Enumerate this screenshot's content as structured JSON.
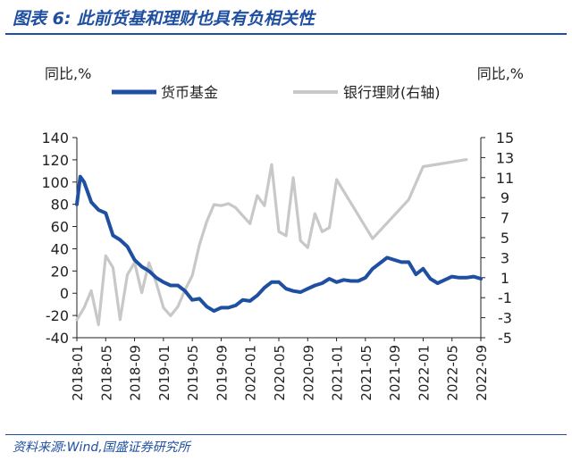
{
  "figure_title": "图表 6:  此前货基和理财也具有负相关性",
  "source": "资料来源:Wind,国盛证券研究所",
  "chart_data": {
    "type": "line",
    "y_unit_left": "同比,%",
    "y_unit_right": "同比,%",
    "ylim_left": [
      -40,
      140
    ],
    "ylim_right": [
      -5,
      15
    ],
    "yticks_left": [
      "140",
      "120",
      "100",
      "80",
      "60",
      "40",
      "20",
      "0",
      "-20",
      "-40"
    ],
    "yticks_right": [
      "15",
      "13",
      "11",
      "9",
      "7",
      "5",
      "3",
      "1",
      "-1",
      "-3",
      "-5"
    ],
    "xlim": [
      "2018-01",
      "2022-09"
    ],
    "x_tick_labels": [
      "2018-01",
      "2018-05",
      "2018-09",
      "2019-01",
      "2019-05",
      "2019-09",
      "2020-01",
      "2020-05",
      "2020-09",
      "2021-01",
      "2021-05",
      "2021-09",
      "2022-01",
      "2022-05",
      "2022-09"
    ],
    "legend_position": "top",
    "grid": false,
    "series": [
      {
        "name": "货币基金",
        "axis": "left",
        "color": "#1f4fa0",
        "points": [
          [
            "2018-01",
            80
          ],
          [
            "2018-01-15",
            105
          ],
          [
            "2018-02",
            100
          ],
          [
            "2018-03",
            82
          ],
          [
            "2018-04",
            75
          ],
          [
            "2018-05",
            72
          ],
          [
            "2018-06",
            52
          ],
          [
            "2018-07",
            48
          ],
          [
            "2018-08",
            42
          ],
          [
            "2018-09",
            30
          ],
          [
            "2018-10",
            24
          ],
          [
            "2018-11",
            20
          ],
          [
            "2018-12",
            14
          ],
          [
            "2019-01",
            10
          ],
          [
            "2019-02",
            7
          ],
          [
            "2019-03",
            7
          ],
          [
            "2019-04",
            2
          ],
          [
            "2019-05",
            -6
          ],
          [
            "2019-06",
            -5
          ],
          [
            "2019-07",
            -12
          ],
          [
            "2019-08",
            -16
          ],
          [
            "2019-09",
            -13
          ],
          [
            "2019-10",
            -13
          ],
          [
            "2019-11",
            -11
          ],
          [
            "2019-12",
            -6
          ],
          [
            "2020-01",
            -7
          ],
          [
            "2020-02",
            -2
          ],
          [
            "2020-03",
            5
          ],
          [
            "2020-04",
            10
          ],
          [
            "2020-05",
            10
          ],
          [
            "2020-06",
            4
          ],
          [
            "2020-07",
            2
          ],
          [
            "2020-08",
            1
          ],
          [
            "2020-09",
            4
          ],
          [
            "2020-10",
            7
          ],
          [
            "2020-11",
            9
          ],
          [
            "2020-12",
            13
          ],
          [
            "2021-01",
            10
          ],
          [
            "2021-02",
            12
          ],
          [
            "2021-03",
            11
          ],
          [
            "2021-04",
            11
          ],
          [
            "2021-05",
            14
          ],
          [
            "2021-06",
            22
          ],
          [
            "2021-07",
            27
          ],
          [
            "2021-08",
            32
          ],
          [
            "2021-09",
            30
          ],
          [
            "2021-10",
            28
          ],
          [
            "2021-11",
            28
          ],
          [
            "2021-12",
            17
          ],
          [
            "2022-01",
            22
          ],
          [
            "2022-02",
            13
          ],
          [
            "2022-03",
            9
          ],
          [
            "2022-04",
            12
          ],
          [
            "2022-05",
            15
          ],
          [
            "2022-06",
            14
          ],
          [
            "2022-07",
            14
          ],
          [
            "2022-08",
            15
          ],
          [
            "2022-09",
            13
          ]
        ]
      },
      {
        "name": "银行理财(右轴)",
        "axis": "right",
        "color": "#c8c8c8",
        "points": [
          [
            "2018-01",
            -3.2
          ],
          [
            "2018-02",
            -2.0
          ],
          [
            "2018-03",
            -0.3
          ],
          [
            "2018-04",
            -3.7
          ],
          [
            "2018-05",
            3.2
          ],
          [
            "2018-06",
            2.0
          ],
          [
            "2018-07",
            -3.2
          ],
          [
            "2018-08",
            1.3
          ],
          [
            "2018-09",
            2.5
          ],
          [
            "2018-10",
            -0.5
          ],
          [
            "2018-11",
            2.5
          ],
          [
            "2018-12",
            0.5
          ],
          [
            "2019-01",
            -2.0
          ],
          [
            "2019-02",
            -2.8
          ],
          [
            "2019-03",
            -1.9
          ],
          [
            "2019-04",
            -0.2
          ],
          [
            "2019-05",
            1.2
          ],
          [
            "2019-06",
            4.3
          ],
          [
            "2019-07",
            6.6
          ],
          [
            "2019-08",
            8.3
          ],
          [
            "2019-09",
            8.2
          ],
          [
            "2019-10",
            8.4
          ],
          [
            "2019-11",
            8.0
          ],
          [
            "2019-12",
            7.2
          ],
          [
            "2020-01",
            6.4
          ],
          [
            "2020-02",
            9.2
          ],
          [
            "2020-03",
            8.2
          ],
          [
            "2020-04",
            12.3
          ],
          [
            "2020-05",
            5.6
          ],
          [
            "2020-06",
            5.2
          ],
          [
            "2020-07",
            11.0
          ],
          [
            "2020-08",
            4.7
          ],
          [
            "2020-09",
            4.0
          ],
          [
            "2020-10",
            7.4
          ],
          [
            "2020-11",
            5.6
          ],
          [
            "2020-12",
            6.0
          ],
          [
            "2021-01",
            10.8
          ],
          [
            "2021-06",
            4.9
          ],
          [
            "2021-11",
            8.8
          ],
          [
            "2022-01",
            12.1
          ],
          [
            "2022-07",
            12.8
          ]
        ]
      }
    ]
  }
}
